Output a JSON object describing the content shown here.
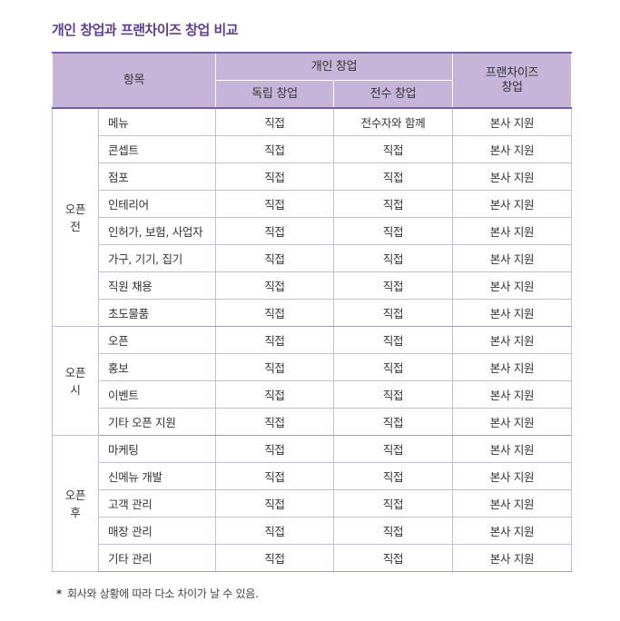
{
  "title": "개인 창업과 프랜차이즈 창업 비교",
  "header": {
    "item": "항목",
    "personal": "개인 창업",
    "independent": "독립 창업",
    "mentor": "전수 창업",
    "franchise_line1": "프랜차이즈",
    "franchise_line2": "창업"
  },
  "groups": [
    {
      "phase_line1": "오픈",
      "phase_line2": "전",
      "rows": [
        {
          "item": "메뉴",
          "independent": "직접",
          "mentor": "전수자와 함께",
          "franchise": "본사 지원"
        },
        {
          "item": "콘셉트",
          "independent": "직접",
          "mentor": "직접",
          "franchise": "본사 지원"
        },
        {
          "item": "점포",
          "independent": "직접",
          "mentor": "직접",
          "franchise": "본사 지원"
        },
        {
          "item": "인테리어",
          "independent": "직접",
          "mentor": "직접",
          "franchise": "본사 지원"
        },
        {
          "item": "인허가, 보험, 사업자",
          "independent": "직접",
          "mentor": "직접",
          "franchise": "본사 지원"
        },
        {
          "item": "가구, 기기, 집기",
          "independent": "직접",
          "mentor": "직접",
          "franchise": "본사 지원"
        },
        {
          "item": "직원 채용",
          "independent": "직접",
          "mentor": "직접",
          "franchise": "본사 지원"
        },
        {
          "item": "초도물품",
          "independent": "직접",
          "mentor": "직접",
          "franchise": "본사 지원"
        }
      ]
    },
    {
      "phase_line1": "오픈",
      "phase_line2": "시",
      "rows": [
        {
          "item": "오픈",
          "independent": "직접",
          "mentor": "직접",
          "franchise": "본사 지원"
        },
        {
          "item": "홍보",
          "independent": "직접",
          "mentor": "직접",
          "franchise": "본사 지원"
        },
        {
          "item": "이벤트",
          "independent": "직접",
          "mentor": "직접",
          "franchise": "본사 지원"
        },
        {
          "item": "기타 오픈 지원",
          "independent": "직접",
          "mentor": "직접",
          "franchise": "본사 지원"
        }
      ]
    },
    {
      "phase_line1": "오픈",
      "phase_line2": "후",
      "rows": [
        {
          "item": "마케팅",
          "independent": "직접",
          "mentor": "직접",
          "franchise": "본사 지원"
        },
        {
          "item": "신메뉴 개발",
          "independent": "직접",
          "mentor": "직접",
          "franchise": "본사 지원"
        },
        {
          "item": "고객 관리",
          "independent": "직접",
          "mentor": "직접",
          "franchise": "본사 지원"
        },
        {
          "item": "매장 관리",
          "independent": "직접",
          "mentor": "직접",
          "franchise": "본사 지원"
        },
        {
          "item": "기타 관리",
          "independent": "직접",
          "mentor": "직접",
          "franchise": "본사 지원"
        }
      ]
    }
  ],
  "footnote": {
    "mark": "*",
    "text": "회사와 상황에 따라 다소 차이가 날 수 있음."
  }
}
